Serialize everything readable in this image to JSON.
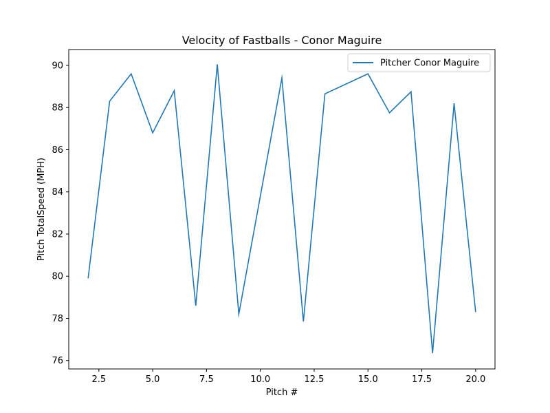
{
  "chart_data": {
    "type": "line",
    "title": "Velocity of Fastballs - Conor Maguire",
    "xlabel": "Pitch #",
    "ylabel": "Pitch TotalSpeed (MPH)",
    "xlim": [
      1.1,
      20.9
    ],
    "ylim": [
      75.6,
      90.75
    ],
    "xticks": [
      2.5,
      5.0,
      7.5,
      10.0,
      12.5,
      15.0,
      17.5,
      20.0
    ],
    "xtick_labels": [
      "2.5",
      "5.0",
      "7.5",
      "10.0",
      "12.5",
      "15.0",
      "17.5",
      "20.0"
    ],
    "yticks": [
      76,
      78,
      80,
      82,
      84,
      86,
      88,
      90
    ],
    "ytick_labels": [
      "76",
      "78",
      "80",
      "82",
      "84",
      "86",
      "88",
      "90"
    ],
    "grid": false,
    "legend_position": "top-right",
    "series": [
      {
        "name": "Pitcher Conor Maguire",
        "color": "#1f77b4",
        "x": [
          2,
          3,
          4,
          5,
          6,
          7,
          8,
          9,
          11,
          12,
          13,
          15,
          16,
          17,
          18,
          19,
          20
        ],
        "y": [
          79.9,
          88.3,
          89.6,
          86.8,
          88.8,
          78.6,
          90.05,
          78.2,
          89.4,
          77.85,
          88.65,
          89.6,
          87.75,
          88.75,
          76.35,
          88.2,
          78.3
        ]
      }
    ]
  }
}
